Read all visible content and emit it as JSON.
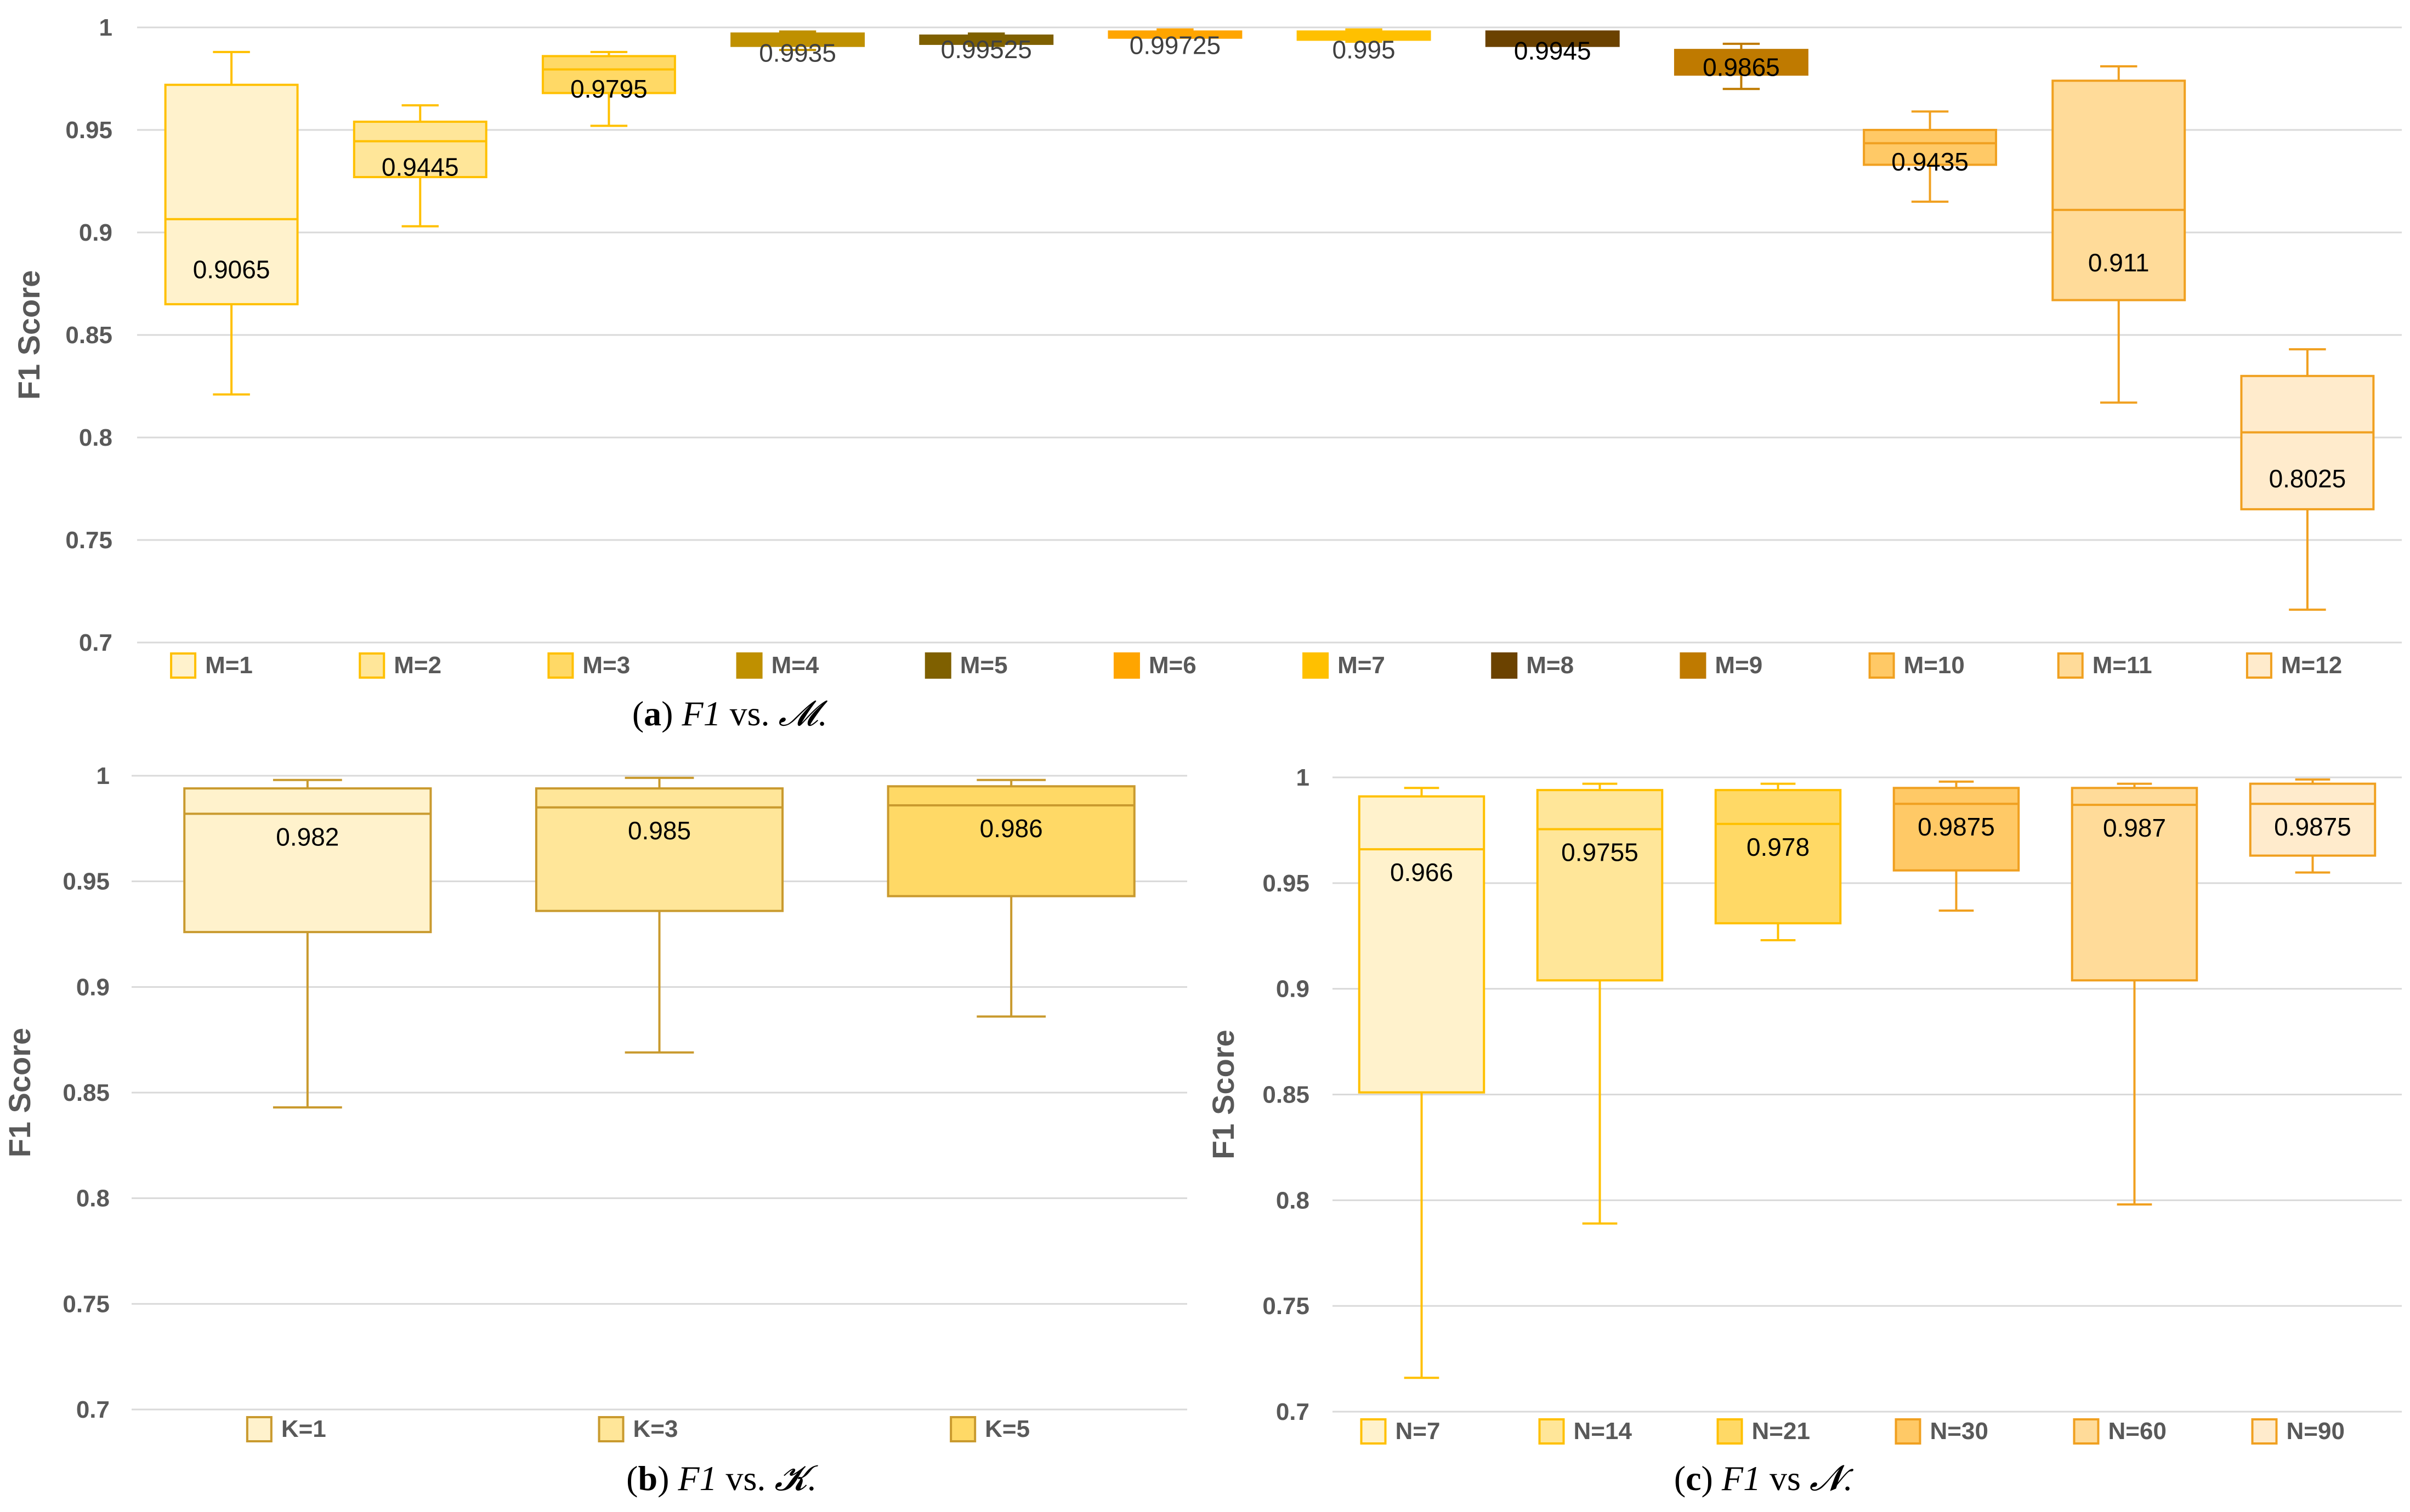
{
  "chart_data": [
    {
      "type": "boxplot",
      "panel": "a",
      "caption": {
        "label": "a",
        "f1": "F1",
        "vs": " vs. ",
        "symbol": "𝓜",
        "end": "."
      },
      "ylabel": "F1 Score",
      "ylim": [
        0.7,
        1
      ],
      "yticks": [
        "0.7",
        "0.75",
        "0.8",
        "0.85",
        "0.9",
        "0.95",
        "1"
      ],
      "legend_position": "bottom",
      "series": [
        {
          "name": "M=1",
          "min": 0.821,
          "q1": 0.865,
          "median": 0.9065,
          "q3": 0.972,
          "max": 0.988,
          "label": "0.9065",
          "fill": "#FFF2CC",
          "stroke": "#FFC000"
        },
        {
          "name": "M=2",
          "min": 0.903,
          "q1": 0.927,
          "median": 0.9445,
          "q3": 0.954,
          "max": 0.962,
          "label": "0.9445",
          "fill": "#FFE699",
          "stroke": "#FFC000"
        },
        {
          "name": "M=3",
          "min": 0.952,
          "q1": 0.968,
          "median": 0.9795,
          "q3": 0.986,
          "max": 0.988,
          "label": "0.9795",
          "fill": "#FFD966",
          "stroke": "#FFC000"
        },
        {
          "name": "M=4",
          "min": 0.989,
          "q1": 0.991,
          "median": 0.9935,
          "q3": 0.997,
          "max": 0.998,
          "label": "0.9935",
          "fill": "#BF9000",
          "stroke": "#BF9000"
        },
        {
          "name": "M=5",
          "min": 0.991,
          "q1": 0.992,
          "median": 0.99525,
          "q3": 0.996,
          "max": 0.997,
          "label": "0.99525",
          "fill": "#7F6000",
          "stroke": "#7F6000"
        },
        {
          "name": "M=6",
          "min": 0.995,
          "q1": 0.995,
          "median": 0.99725,
          "q3": 0.998,
          "max": 0.999,
          "label": "0.99725",
          "fill": "#FFA500",
          "stroke": "#FFA500"
        },
        {
          "name": "M=7",
          "min": 0.993,
          "q1": 0.994,
          "median": 0.995,
          "q3": 0.998,
          "max": 0.999,
          "label": "0.995",
          "fill": "#FFC000",
          "stroke": "#FFC000"
        },
        {
          "name": "M=8",
          "min": 0.991,
          "q1": 0.991,
          "median": 0.9945,
          "q3": 0.998,
          "max": 0.998,
          "label": "0.9945",
          "fill": "#6B4200",
          "stroke": "#6B4200"
        },
        {
          "name": "M=9",
          "min": 0.97,
          "q1": 0.977,
          "median": 0.9865,
          "q3": 0.989,
          "max": 0.992,
          "label": "0.9865",
          "fill": "#BF7A00",
          "stroke": "#BF7A00"
        },
        {
          "name": "M=10",
          "min": 0.915,
          "q1": 0.933,
          "median": 0.9435,
          "q3": 0.95,
          "max": 0.959,
          "label": "0.9435",
          "fill": "#FFC966",
          "stroke": "#F0A020"
        },
        {
          "name": "M=11",
          "min": 0.817,
          "q1": 0.867,
          "median": 0.911,
          "q3": 0.974,
          "max": 0.981,
          "label": "0.911",
          "fill": "#FFDB99",
          "stroke": "#F0A020"
        },
        {
          "name": "M=12",
          "min": 0.716,
          "q1": 0.765,
          "median": 0.8025,
          "q3": 0.83,
          "max": 0.843,
          "label": "0.8025",
          "fill": "#FFEBCC",
          "stroke": "#F0A020"
        }
      ]
    },
    {
      "type": "boxplot",
      "panel": "b",
      "caption": {
        "label": "b",
        "f1": "F1",
        "vs": " vs. ",
        "symbol": "𝓚",
        "end": "."
      },
      "ylabel": "F1 Score",
      "ylim": [
        0.7,
        1
      ],
      "yticks": [
        "0.7",
        "0.75",
        "0.8",
        "0.85",
        "0.9",
        "0.95",
        "1"
      ],
      "legend_position": "bottom",
      "series": [
        {
          "name": "K=1",
          "min": 0.843,
          "q1": 0.926,
          "median": 0.982,
          "q3": 0.994,
          "max": 0.998,
          "label": "0.982",
          "fill": "#FFF2CC",
          "stroke": "#C99A2E"
        },
        {
          "name": "K=3",
          "min": 0.869,
          "q1": 0.936,
          "median": 0.985,
          "q3": 0.994,
          "max": 0.999,
          "label": "0.985",
          "fill": "#FFE699",
          "stroke": "#C99A2E"
        },
        {
          "name": "K=5",
          "min": 0.886,
          "q1": 0.943,
          "median": 0.986,
          "q3": 0.995,
          "max": 0.998,
          "label": "0.986",
          "fill": "#FFD966",
          "stroke": "#C99A2E"
        }
      ]
    },
    {
      "type": "boxplot",
      "panel": "c",
      "caption": {
        "label": "c",
        "f1": "F1",
        "vs": " vs ",
        "symbol": "𝓝",
        "end": "."
      },
      "ylabel": "F1 Score",
      "ylim": [
        0.7,
        1
      ],
      "yticks": [
        "0.7",
        "0.75",
        "0.8",
        "0.85",
        "0.9",
        "0.95",
        "1"
      ],
      "legend_position": "bottom",
      "series": [
        {
          "name": "N=7",
          "min": 0.716,
          "q1": 0.851,
          "median": 0.966,
          "q3": 0.991,
          "max": 0.995,
          "label": "0.966",
          "fill": "#FFF2CC",
          "stroke": "#FFC000"
        },
        {
          "name": "N=14",
          "min": 0.789,
          "q1": 0.904,
          "median": 0.9755,
          "q3": 0.994,
          "max": 0.997,
          "label": "0.9755",
          "fill": "#FFE699",
          "stroke": "#FFC000"
        },
        {
          "name": "N=21",
          "min": 0.923,
          "q1": 0.931,
          "median": 0.978,
          "q3": 0.994,
          "max": 0.997,
          "label": "0.978",
          "fill": "#FFD966",
          "stroke": "#FFC000"
        },
        {
          "name": "N=30",
          "min": 0.937,
          "q1": 0.956,
          "median": 0.9875,
          "q3": 0.995,
          "max": 0.998,
          "label": "0.9875",
          "fill": "#FFC966",
          "stroke": "#F0A020"
        },
        {
          "name": "N=60",
          "min": 0.798,
          "q1": 0.904,
          "median": 0.987,
          "q3": 0.995,
          "max": 0.997,
          "label": "0.987",
          "fill": "#FFDB99",
          "stroke": "#F0A020"
        },
        {
          "name": "N=90",
          "min": 0.955,
          "q1": 0.963,
          "median": 0.9875,
          "q3": 0.997,
          "max": 0.999,
          "label": "0.9875",
          "fill": "#FFEBCC",
          "stroke": "#F0A020"
        }
      ]
    }
  ]
}
